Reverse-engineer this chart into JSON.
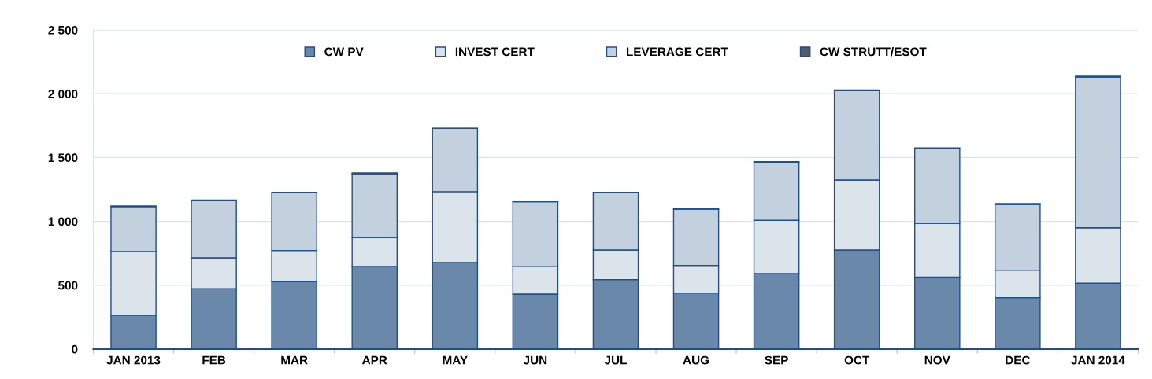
{
  "chart_data": {
    "type": "bar",
    "stacked": true,
    "categories": [
      "JAN 2013",
      "FEB",
      "MAR",
      "APR",
      "MAY",
      "JUN",
      "JUL",
      "AUG",
      "SEP",
      "OCT",
      "NOV",
      "DEC",
      "JAN 2014"
    ],
    "series": [
      {
        "name": "CW PV",
        "color": "#6a88aa",
        "values": [
          265,
          472,
          527,
          647,
          677,
          431,
          544,
          439,
          591,
          776,
          564,
          402,
          515
        ]
      },
      {
        "name": "INVEST CERT",
        "color": "#dbe3eb",
        "values": [
          499,
          242,
          245,
          227,
          555,
          214,
          232,
          216,
          417,
          548,
          421,
          216,
          435
        ]
      },
      {
        "name": "LEVERAGE CERT",
        "color": "#c3d1de",
        "values": [
          351,
          448,
          451,
          499,
          496,
          509,
          447,
          441,
          455,
          700,
          585,
          515,
          1181
        ]
      },
      {
        "name": "CW STRUTT/ESOT",
        "color": "#555c66",
        "values": [
          6,
          5,
          4,
          6,
          2,
          4,
          4,
          6,
          4,
          6,
          6,
          6,
          6
        ]
      }
    ],
    "ylim": [
      0,
      2500
    ],
    "yticks": [
      0,
      500,
      {
        "value": 1000,
        "label": "1 000"
      },
      {
        "value": 1500,
        "label": "1 500"
      },
      {
        "value": 2000,
        "label": "2 000"
      },
      {
        "value": 2500,
        "label": "2 500"
      }
    ],
    "grid": "y",
    "legend": "top"
  }
}
